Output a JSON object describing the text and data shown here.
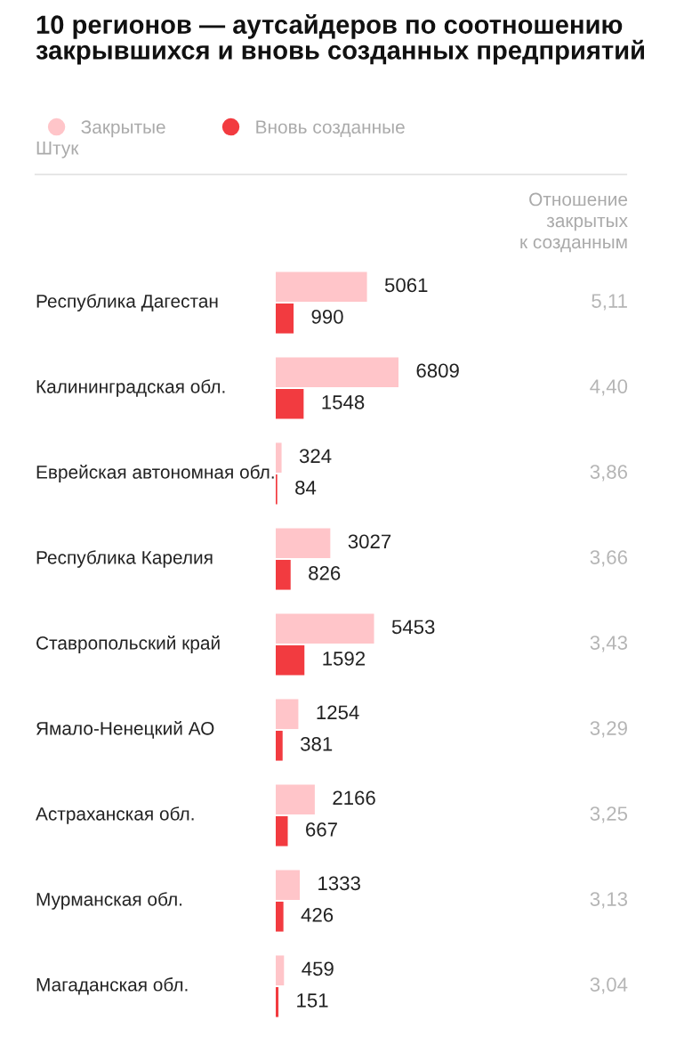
{
  "chart_data": {
    "type": "bar",
    "orientation": "horizontal",
    "title": "10 регионов — аутсайдеров по соотношению закрывшихся и вновь созданных предприятий",
    "categories": [
      "Республика Дагестан",
      "Калининградская обл.",
      "Еврейская автономная обл.",
      "Республика Карелия",
      "Ставропольский край",
      "Ямало-Ненецкий АО",
      "Астраханская обл.",
      "Мурманская обл.",
      "Магаданская обл."
    ],
    "series": [
      {
        "name": "Закрытые",
        "color": "#ffc5c9",
        "values": [
          5061,
          6809,
          324,
          3027,
          5453,
          1254,
          2166,
          1333,
          459
        ]
      },
      {
        "name": "Вновь созданные",
        "color": "#f23b40",
        "values": [
          990,
          1548,
          84,
          826,
          1592,
          381,
          667,
          426,
          151
        ]
      }
    ],
    "data_labels": true,
    "legend": "top left",
    "tick_labels": "y",
    "annotations": [
      "Штук",
      "Отношение\nзакрытых\nк созданным",
      "5,11",
      "4,40",
      "3,86",
      "3,66",
      "3,43",
      "3,29",
      "3,25",
      "3,13",
      "3,04"
    ]
  }
}
